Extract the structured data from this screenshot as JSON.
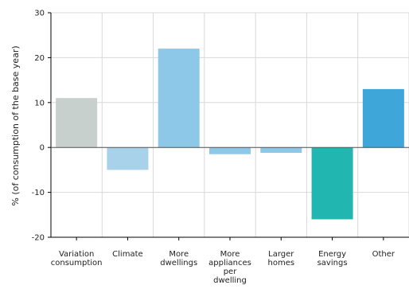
{
  "chart_data": {
    "type": "bar",
    "title": "",
    "xlabel": "",
    "ylabel": "% (of consumption of the base year)",
    "ylim": [
      -20,
      30
    ],
    "yticks": [
      -20,
      -10,
      0,
      10,
      20,
      30
    ],
    "grid": true,
    "legend": "none",
    "categories": [
      [
        "Variation",
        "consumption"
      ],
      [
        "Climate"
      ],
      [
        "More",
        "dwellings"
      ],
      [
        "More",
        "appliances",
        "per",
        "dwelling"
      ],
      [
        "Larger",
        "homes"
      ],
      [
        "Energy",
        "savings"
      ],
      [
        "Other"
      ]
    ],
    "values": [
      11,
      -5,
      22,
      -1.5,
      -1.2,
      -16,
      13
    ],
    "colors": [
      "#c8d0ce",
      "#a8d2ea",
      "#8ec8e8",
      "#8ec8e8",
      "#8ec8e8",
      "#22b6b0",
      "#3ea6d8"
    ]
  }
}
